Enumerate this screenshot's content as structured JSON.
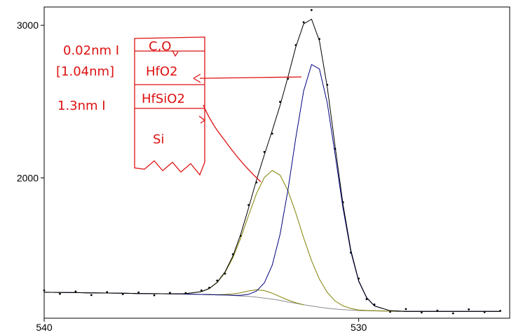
{
  "chart_data": {
    "type": "line",
    "x": [
      540,
      539.5,
      539,
      538.5,
      538,
      537.5,
      537,
      536.5,
      536,
      535.5,
      535,
      534.75,
      534.5,
      534.25,
      534,
      533.75,
      533.5,
      533.25,
      533,
      532.75,
      532.5,
      532.25,
      532,
      531.75,
      531.5,
      531.25,
      531,
      530.75,
      530.5,
      530.25,
      530,
      529.75,
      529.5,
      529,
      528.5,
      528,
      527.5,
      527,
      526.5,
      526,
      525.5
    ],
    "series": [
      {
        "mode": "markers",
        "color": "#000000",
        "values": [
          1262,
          1240,
          1255,
          1232,
          1251,
          1238,
          1249,
          1230,
          1246,
          1245,
          1262,
          1280,
          1327,
          1372,
          1499,
          1620,
          1822,
          1970,
          2170,
          2290,
          2498,
          2650,
          2870,
          3020,
          3100,
          2910,
          2610,
          2190,
          1840,
          1510,
          1340,
          1205,
          1170,
          1122,
          1140,
          1118,
          1130,
          1112,
          1138,
          1120,
          1128
        ]
      },
      {
        "mode": "lines",
        "color": "#8c8c8c",
        "values": [
          1250,
          1249,
          1248,
          1246,
          1245,
          1244,
          1242,
          1241,
          1240,
          1238,
          1236,
          1235,
          1233,
          1232,
          1229,
          1226,
          1223,
          1218,
          1212,
          1205,
          1197,
          1187,
          1178,
          1168,
          1160,
          1152,
          1145,
          1140,
          1136,
          1133,
          1130,
          1129,
          1128,
          1126,
          1125,
          1125,
          1125,
          1125,
          1125,
          1125,
          1125
        ]
      },
      {
        "mode": "lines",
        "color": "#808000",
        "values": [
          null,
          null,
          null,
          null,
          null,
          null,
          null,
          null,
          null,
          null,
          1236,
          1235,
          1234,
          1236,
          1239,
          1247,
          1259,
          1266,
          1261,
          1244,
          1221,
          1199,
          1182,
          1168,
          null,
          null,
          null,
          null,
          null,
          null,
          null,
          null,
          null,
          null,
          null,
          null,
          null,
          null,
          null,
          null,
          null
        ]
      },
      {
        "mode": "lines",
        "color": "#808000",
        "values": [
          1250,
          1249,
          1248,
          1246,
          1245,
          1244,
          1242,
          1241,
          1240,
          1241,
          1254,
          1275,
          1314,
          1380,
          1477,
          1606,
          1754,
          1897,
          2003,
          2048,
          2018,
          1916,
          1770,
          1607,
          1457,
          1336,
          1249,
          1193,
          1161,
          1144,
          1134,
          1131,
          1129,
          1126,
          1125,
          1125,
          1125,
          1125,
          1125,
          1125,
          1125
        ]
      },
      {
        "mode": "lines",
        "color": "#00007f",
        "values": [
          1250,
          1249,
          1248,
          1246,
          1245,
          1244,
          1242,
          1241,
          1240,
          1238,
          1236,
          1235,
          1233,
          1232,
          1230,
          1230,
          1237,
          1258,
          1312,
          1428,
          1630,
          1920,
          2262,
          2570,
          2743,
          2714,
          2491,
          2153,
          1803,
          1516,
          1322,
          1214,
          1160,
          1129,
          1125,
          1125,
          1125,
          1125,
          1125,
          1125,
          1125
        ]
      },
      {
        "mode": "lines",
        "color": "#000000",
        "values": [
          1250,
          1249,
          1248,
          1246,
          1245,
          1244,
          1242,
          1241,
          1240,
          1241,
          1254,
          1275,
          1315,
          1384,
          1488,
          1631,
          1804,
          1985,
          2152,
          2310,
          2475,
          2661,
          2858,
          3009,
          3040,
          2898,
          2595,
          2206,
          1828,
          1527,
          1326,
          1216,
          1161,
          1129,
          1125,
          1125,
          1125,
          1125,
          1125,
          1125,
          1125
        ]
      }
    ],
    "xlim": [
      540,
      525.2
    ],
    "xticks": [
      540,
      530
    ],
    "ylim": [
      1080,
      3120
    ],
    "yticks": [
      2000,
      3000
    ],
    "annotations": [
      "0.02nm I",
      "[1.04nm]",
      "1.3nm I",
      "C,O",
      "HfO2",
      "HfSiO2",
      "Si"
    ]
  }
}
